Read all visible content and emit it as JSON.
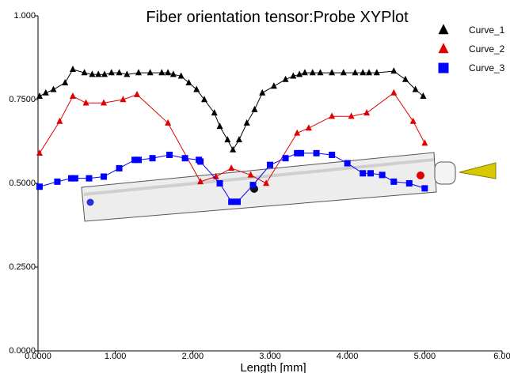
{
  "chart_data": {
    "type": "line",
    "title": "Fiber orientation tensor:Probe XYPlot",
    "x_label": "Length [mm]",
    "xlim": [
      0,
      6
    ],
    "ylim": [
      0,
      1
    ],
    "xticks": [
      {
        "value": 0,
        "label": "0.0000"
      },
      {
        "value": 1,
        "label": "1.000"
      },
      {
        "value": 2,
        "label": "2.000"
      },
      {
        "value": 3,
        "label": "3.000"
      },
      {
        "value": 4,
        "label": "4.000"
      },
      {
        "value": 5,
        "label": "5.000"
      },
      {
        "value": 6,
        "label": "6.00"
      }
    ],
    "yticks": [
      {
        "value": 0,
        "label": "0.0000"
      },
      {
        "value": 0.25,
        "label": "0.2500"
      },
      {
        "value": 0.5,
        "label": "0.5000"
      },
      {
        "value": 0.75,
        "label": "0.7500"
      },
      {
        "value": 1,
        "label": "1.000"
      }
    ],
    "series": [
      {
        "name": "Curve_1",
        "color": "#000000",
        "marker": "triangle",
        "x": [
          0.02,
          0.1,
          0.2,
          0.35,
          0.45,
          0.6,
          0.7,
          0.78,
          0.86,
          0.95,
          1.05,
          1.15,
          1.3,
          1.45,
          1.6,
          1.68,
          1.75,
          1.85,
          1.95,
          2.05,
          2.15,
          2.28,
          2.35,
          2.45,
          2.52,
          2.6,
          2.7,
          2.8,
          2.9,
          3.05,
          3.2,
          3.3,
          3.38,
          3.45,
          3.55,
          3.65,
          3.8,
          3.95,
          4.1,
          4.2,
          4.28,
          4.38,
          4.6,
          4.75,
          4.88,
          4.98
        ],
        "values": [
          0.76,
          0.77,
          0.78,
          0.8,
          0.84,
          0.83,
          0.825,
          0.825,
          0.825,
          0.83,
          0.83,
          0.825,
          0.83,
          0.83,
          0.83,
          0.83,
          0.825,
          0.82,
          0.8,
          0.78,
          0.75,
          0.71,
          0.67,
          0.63,
          0.6,
          0.63,
          0.68,
          0.72,
          0.77,
          0.79,
          0.81,
          0.82,
          0.825,
          0.83,
          0.83,
          0.83,
          0.83,
          0.83,
          0.83,
          0.83,
          0.83,
          0.83,
          0.835,
          0.81,
          0.78,
          0.76
        ]
      },
      {
        "name": "Curve_2",
        "color": "#e00000",
        "marker": "triangle",
        "x": [
          0.02,
          0.28,
          0.45,
          0.62,
          0.85,
          1.1,
          1.28,
          1.68,
          2.1,
          2.3,
          2.5,
          2.75,
          2.95,
          3.35,
          3.5,
          3.8,
          4.05,
          4.25,
          4.6,
          4.85,
          5.0
        ],
        "values": [
          0.59,
          0.685,
          0.76,
          0.74,
          0.74,
          0.75,
          0.765,
          0.68,
          0.505,
          0.52,
          0.545,
          0.525,
          0.5,
          0.65,
          0.665,
          0.7,
          0.7,
          0.71,
          0.77,
          0.685,
          0.62
        ]
      },
      {
        "name": "Curve_3",
        "color": "#0000ff",
        "marker": "square",
        "x": [
          0.02,
          0.25,
          0.43,
          0.48,
          0.66,
          0.85,
          1.05,
          1.25,
          1.3,
          1.48,
          1.7,
          1.9,
          2.08,
          2.1,
          2.35,
          2.5,
          2.58,
          2.78,
          3.0,
          3.2,
          3.35,
          3.4,
          3.6,
          3.8,
          4.0,
          4.2,
          4.3,
          4.45,
          4.6,
          4.8,
          5.0
        ],
        "values": [
          0.49,
          0.505,
          0.515,
          0.515,
          0.515,
          0.52,
          0.545,
          0.57,
          0.57,
          0.575,
          0.585,
          0.575,
          0.57,
          0.565,
          0.5,
          0.445,
          0.445,
          0.495,
          0.555,
          0.575,
          0.59,
          0.59,
          0.59,
          0.585,
          0.56,
          0.53,
          0.53,
          0.525,
          0.505,
          0.5,
          0.485
        ]
      }
    ]
  }
}
